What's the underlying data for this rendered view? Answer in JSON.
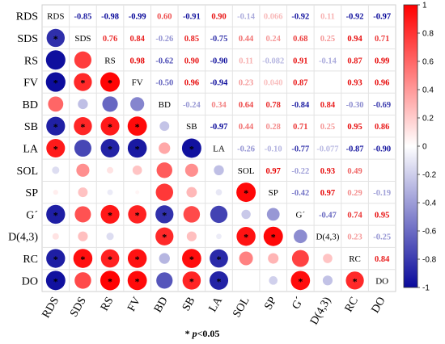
{
  "chart_data": {
    "type": "heatmap",
    "variables": [
      "RDS",
      "SDS",
      "RS",
      "FV",
      "BD",
      "SB",
      "LA",
      "SOL",
      "SP",
      "G´",
      "D(4,3)",
      "RC",
      "DO"
    ],
    "matrix": [
      [
        1,
        -0.85,
        -0.98,
        -0.99,
        0.6,
        -0.91,
        0.9,
        -0.14,
        0.066,
        -0.92,
        0.11,
        -0.92,
        -0.97
      ],
      [
        -0.85,
        1,
        0.76,
        0.84,
        -0.26,
        0.85,
        -0.75,
        0.44,
        0.24,
        0.68,
        0.25,
        0.94,
        0.71
      ],
      [
        -0.98,
        0.76,
        1,
        0.98,
        -0.62,
        0.9,
        -0.9,
        0.11,
        -0.082,
        0.91,
        -0.14,
        0.87,
        0.99
      ],
      [
        -0.99,
        0.84,
        0.98,
        1,
        -0.5,
        0.96,
        -0.94,
        0.23,
        0.04,
        0.87,
        0.0,
        0.93,
        0.96
      ],
      [
        0.6,
        -0.26,
        -0.62,
        -0.5,
        1,
        -0.24,
        0.34,
        0.64,
        0.78,
        -0.84,
        0.84,
        -0.3,
        -0.69
      ],
      [
        -0.91,
        0.85,
        0.9,
        0.96,
        -0.24,
        1,
        -0.97,
        0.44,
        0.28,
        0.71,
        0.25,
        0.95,
        0.86
      ],
      [
        0.9,
        -0.75,
        -0.9,
        -0.94,
        0.34,
        -0.97,
        1,
        -0.26,
        -0.1,
        -0.77,
        -0.077,
        -0.87,
        -0.9
      ],
      [
        -0.14,
        0.44,
        0.11,
        0.23,
        0.64,
        0.44,
        -0.26,
        1,
        0.97,
        -0.22,
        0.93,
        0.49,
        0.0
      ],
      [
        0.066,
        0.24,
        -0.082,
        0.04,
        0.78,
        0.28,
        -0.1,
        0.97,
        1,
        -0.42,
        0.97,
        0.29,
        -0.19
      ],
      [
        -0.92,
        0.68,
        0.91,
        0.87,
        -0.84,
        0.71,
        -0.77,
        -0.22,
        -0.42,
        1,
        -0.47,
        0.74,
        0.95
      ],
      [
        0.11,
        0.25,
        -0.14,
        0.0,
        0.84,
        0.25,
        -0.077,
        0.93,
        0.97,
        -0.47,
        1,
        0.23,
        -0.25
      ],
      [
        -0.92,
        0.94,
        0.87,
        0.93,
        -0.3,
        0.95,
        -0.87,
        0.49,
        0.29,
        0.74,
        0.23,
        1,
        0.84
      ],
      [
        -0.97,
        0.71,
        0.99,
        0.96,
        -0.69,
        0.86,
        -0.9,
        0.0,
        -0.19,
        0.95,
        -0.25,
        0.84,
        1
      ]
    ],
    "upper_labels": [
      [
        null,
        "-0.85",
        "-0.98",
        "-0.99",
        "0.60",
        "-0.91",
        "0.90",
        "-0.14",
        "0.066",
        "-0.92",
        "0.11",
        "-0.92",
        "-0.97"
      ],
      [
        null,
        null,
        "0.76",
        "0.84",
        "-0.26",
        "0.85",
        "-0.75",
        "0.44",
        "0.24",
        "0.68",
        "0.25",
        "0.94",
        "0.71"
      ],
      [
        null,
        null,
        null,
        "0.98",
        "-0.62",
        "0.90",
        "-0.90",
        "0.11",
        "-0.082",
        "0.91",
        "-0.14",
        "0.87",
        "0.99"
      ],
      [
        null,
        null,
        null,
        null,
        "-0.50",
        "0.96",
        "-0.94",
        "0.23",
        "0.040",
        "0.87",
        "",
        "0.93",
        "0.96"
      ],
      [
        null,
        null,
        null,
        null,
        null,
        "-0.24",
        "0.34",
        "0.64",
        "0.78",
        "-0.84",
        "0.84",
        "-0.30",
        "-0.69"
      ],
      [
        null,
        null,
        null,
        null,
        null,
        null,
        "-0.97",
        "0.44",
        "0.28",
        "0.71",
        "0.25",
        "0.95",
        "0.86"
      ],
      [
        null,
        null,
        null,
        null,
        null,
        null,
        null,
        "-0.26",
        "-0.10",
        "-0.77",
        "-0.077",
        "-0.87",
        "-0.90"
      ],
      [
        null,
        null,
        null,
        null,
        null,
        null,
        null,
        null,
        "0.97",
        "-0.22",
        "0.93",
        "0.49",
        ""
      ],
      [
        null,
        null,
        null,
        null,
        null,
        null,
        null,
        null,
        null,
        "-0.42",
        "0.97",
        "0.29",
        "-0.19"
      ],
      [
        null,
        null,
        null,
        null,
        null,
        null,
        null,
        null,
        null,
        null,
        "-0.47",
        "0.74",
        "0.95"
      ],
      [
        null,
        null,
        null,
        null,
        null,
        null,
        null,
        null,
        null,
        null,
        null,
        "0.23",
        "-0.25"
      ],
      [
        null,
        null,
        null,
        null,
        null,
        null,
        null,
        null,
        null,
        null,
        null,
        null,
        "0.84"
      ],
      [
        null,
        null,
        null,
        null,
        null,
        null,
        null,
        null,
        null,
        null,
        null,
        null,
        null
      ]
    ],
    "significant": [
      [
        null,
        null,
        null,
        null,
        null,
        null,
        null,
        null,
        null,
        null,
        null,
        null,
        null
      ],
      [
        true,
        null,
        null,
        null,
        null,
        null,
        null,
        null,
        null,
        null,
        null,
        null,
        null
      ],
      [
        false,
        false,
        null,
        null,
        null,
        null,
        null,
        null,
        null,
        null,
        null,
        null,
        null
      ],
      [
        true,
        true,
        true,
        null,
        null,
        null,
        null,
        null,
        null,
        null,
        null,
        null,
        null
      ],
      [
        false,
        false,
        false,
        false,
        null,
        null,
        null,
        null,
        null,
        null,
        null,
        null,
        null
      ],
      [
        true,
        true,
        true,
        true,
        false,
        null,
        null,
        null,
        null,
        null,
        null,
        null,
        null
      ],
      [
        true,
        false,
        true,
        true,
        false,
        true,
        null,
        null,
        null,
        null,
        null,
        null,
        null
      ],
      [
        false,
        false,
        false,
        false,
        false,
        false,
        false,
        null,
        null,
        null,
        null,
        null,
        null
      ],
      [
        false,
        false,
        false,
        false,
        false,
        false,
        false,
        true,
        null,
        null,
        null,
        null,
        null
      ],
      [
        true,
        false,
        true,
        true,
        true,
        false,
        false,
        false,
        false,
        null,
        null,
        null,
        null
      ],
      [
        false,
        false,
        false,
        false,
        true,
        false,
        false,
        true,
        true,
        false,
        null,
        null,
        null
      ],
      [
        true,
        true,
        true,
        true,
        false,
        true,
        true,
        false,
        false,
        false,
        false,
        null,
        null
      ],
      [
        true,
        false,
        true,
        true,
        false,
        true,
        true,
        false,
        false,
        true,
        false,
        true,
        null
      ]
    ],
    "colorbar": {
      "min": -1,
      "max": 1,
      "ticks": [
        "1",
        "0.8",
        "0.6",
        "0.4",
        "0.2",
        "0",
        "-0.2",
        "-0.4",
        "-0.6",
        "-0.8",
        "-1"
      ]
    },
    "colors": {
      "negative": "#0a0a9c",
      "neutral": "#ffffff",
      "positive": "#ff0000"
    },
    "grid": true,
    "legend": "right"
  },
  "note": {
    "star": "*",
    "p_symbol": "p",
    "rest": "<0.05"
  }
}
